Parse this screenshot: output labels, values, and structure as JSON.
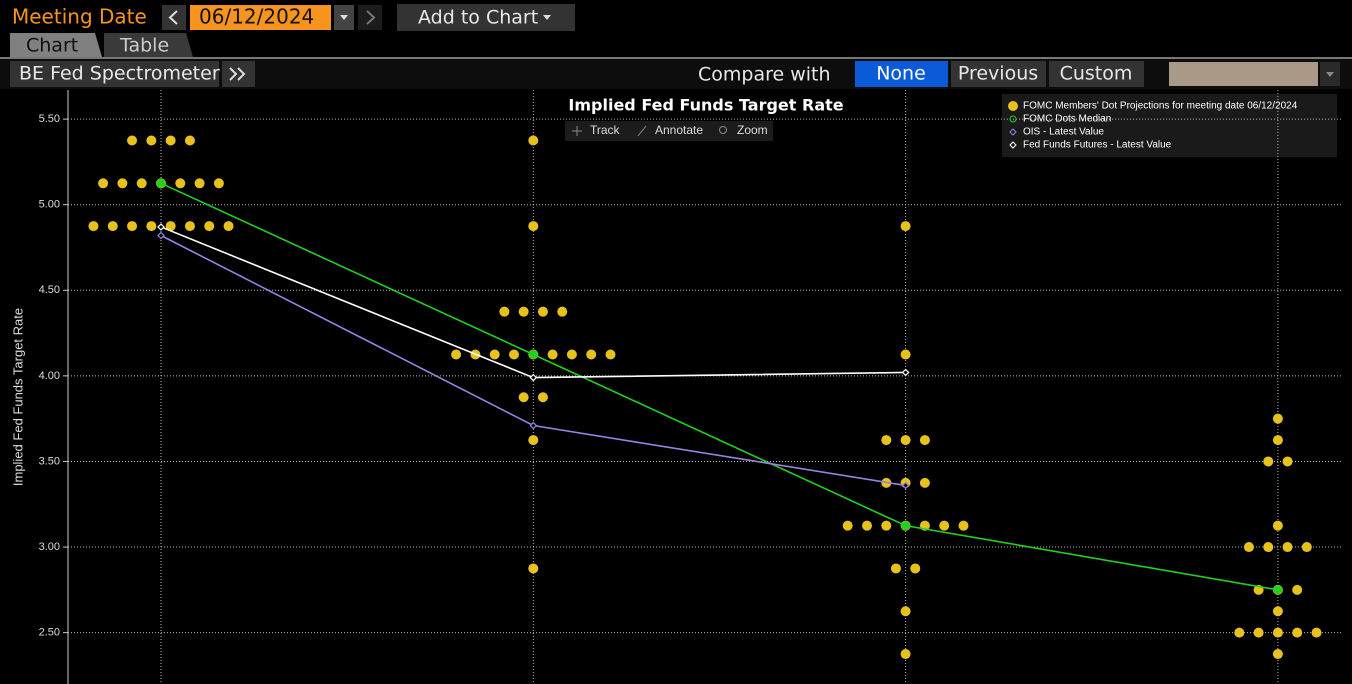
{
  "toolbar": {
    "meeting_date_label": "Meeting Date",
    "meeting_date": "06/12/2024",
    "add_to_chart": "Add to Chart"
  },
  "tabs": [
    "Chart",
    "Table"
  ],
  "panel": {
    "function_name": "BE Fed Spectrometer",
    "compare_label": "Compare with",
    "compare_options": [
      "None",
      "Previous",
      "Custom"
    ]
  },
  "chart_tools": [
    "Track",
    "Annotate",
    "Zoom"
  ],
  "chart_data": {
    "type": "scatter",
    "title": "Implied Fed Funds Target Rate",
    "y_label": "Implied Fed Funds Target Rate",
    "categories": [
      null,
      null,
      null,
      null
    ],
    "ylim": [
      2.2,
      5.67
    ],
    "yticks": [
      {
        "value": 2.5,
        "label": "2.50"
      },
      {
        "value": 3.0,
        "label": "3.00"
      },
      {
        "value": 3.5,
        "label": "3.50"
      },
      {
        "value": 4.0,
        "label": "4.00"
      },
      {
        "value": 4.5,
        "label": "4.50"
      },
      {
        "value": 5.0,
        "label": "5.00"
      },
      {
        "value": 5.5,
        "label": "5.50"
      }
    ],
    "grid": true,
    "legend": "top-right",
    "series": [
      {
        "name": "FOMC Members' Dot Projections for meeting date 06/12/2024",
        "color": "#e8c21c",
        "marker": "dot",
        "values": [
          [
            5.375,
            5.375,
            5.375,
            5.375,
            5.125,
            5.125,
            5.125,
            5.125,
            5.125,
            5.125,
            5.125,
            4.875,
            4.875,
            4.875,
            4.875,
            4.875,
            4.875,
            4.875,
            4.875
          ],
          [
            5.375,
            4.875,
            4.375,
            4.375,
            4.375,
            4.375,
            4.125,
            4.125,
            4.125,
            4.125,
            4.125,
            4.125,
            4.125,
            4.125,
            4.125,
            3.875,
            3.875,
            3.625,
            2.875
          ],
          [
            4.875,
            4.125,
            3.625,
            3.625,
            3.625,
            3.375,
            3.375,
            3.375,
            3.125,
            3.125,
            3.125,
            3.125,
            3.125,
            3.125,
            3.125,
            2.875,
            2.875,
            2.625,
            2.375
          ],
          [
            3.75,
            3.625,
            3.5,
            3.5,
            3.125,
            3.0,
            3.0,
            3.0,
            3.0,
            2.75,
            2.75,
            2.75,
            2.625,
            2.5,
            2.5,
            2.5,
            2.5,
            2.5,
            2.375
          ]
        ]
      },
      {
        "name": "FOMC Dots Median",
        "color": "#22d022",
        "marker": "circle",
        "values": [
          5.125,
          4.125,
          3.125,
          2.75
        ]
      },
      {
        "name": "OIS - Latest Value",
        "color": "#9b82e2",
        "marker": "diamond",
        "values": [
          4.82,
          3.71,
          3.36,
          null
        ]
      },
      {
        "name": "Fed Funds Futures - Latest Value",
        "color": "#ffffff",
        "marker": "diamond",
        "values": [
          4.87,
          3.99,
          4.02,
          null
        ]
      }
    ]
  }
}
